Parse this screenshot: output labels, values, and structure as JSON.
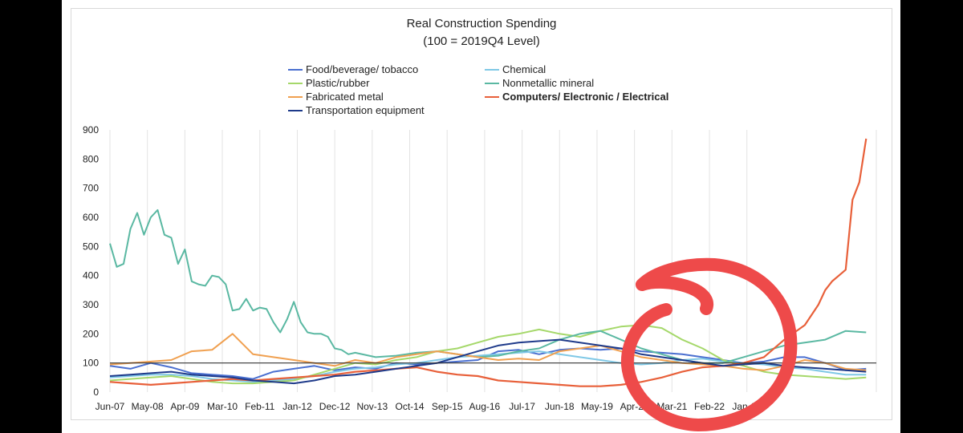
{
  "chart_data": {
    "type": "line",
    "title": "Real Construction Spending",
    "subtitle": "(100 = 2019Q4 Level)",
    "ylim": [
      0,
      900
    ],
    "yticks": [
      0,
      100,
      200,
      300,
      400,
      500,
      600,
      700,
      800,
      900
    ],
    "x_tick_labels": [
      "Jun-07",
      "May-08",
      "Apr-09",
      "Mar-10",
      "Feb-11",
      "Jan-12",
      "Dec-12",
      "Nov-13",
      "Oct-14",
      "Sep-15",
      "Aug-16",
      "Jul-17",
      "Jun-18",
      "May-19",
      "Apr-20",
      "Mar-21",
      "Feb-22",
      "Jan-23"
    ],
    "x_start": "Jun-07",
    "reference_line": 100,
    "grid": "vertical",
    "legend_position": "top",
    "annotation": "red hand-drawn circle around May-19 to Apr-20",
    "series": [
      {
        "name": "Food/beverage/ tobacco",
        "color": "#4a6fd0",
        "bold": false,
        "points": [
          [
            0,
            90
          ],
          [
            6,
            80
          ],
          [
            12,
            100
          ],
          [
            18,
            85
          ],
          [
            24,
            65
          ],
          [
            30,
            60
          ],
          [
            36,
            55
          ],
          [
            42,
            45
          ],
          [
            48,
            70
          ],
          [
            54,
            80
          ],
          [
            60,
            90
          ],
          [
            66,
            75
          ],
          [
            72,
            85
          ],
          [
            78,
            80
          ],
          [
            84,
            100
          ],
          [
            90,
            95
          ],
          [
            96,
            100
          ],
          [
            102,
            105
          ],
          [
            108,
            110
          ],
          [
            114,
            140
          ],
          [
            120,
            145
          ],
          [
            126,
            130
          ],
          [
            132,
            145
          ],
          [
            138,
            150
          ],
          [
            144,
            145
          ],
          [
            150,
            150
          ],
          [
            156,
            140
          ],
          [
            162,
            135
          ],
          [
            168,
            130
          ],
          [
            174,
            120
          ],
          [
            180,
            110
          ],
          [
            186,
            100
          ],
          [
            192,
            105
          ],
          [
            198,
            120
          ],
          [
            204,
            120
          ],
          [
            210,
            100
          ],
          [
            216,
            75
          ],
          [
            222,
            80
          ]
        ]
      },
      {
        "name": "Chemical",
        "color": "#7fc8e6",
        "bold": false,
        "points": [
          [
            0,
            50
          ],
          [
            6,
            55
          ],
          [
            12,
            60
          ],
          [
            18,
            60
          ],
          [
            24,
            55
          ],
          [
            30,
            45
          ],
          [
            36,
            40
          ],
          [
            42,
            35
          ],
          [
            48,
            40
          ],
          [
            54,
            45
          ],
          [
            60,
            55
          ],
          [
            66,
            70
          ],
          [
            72,
            80
          ],
          [
            78,
            85
          ],
          [
            84,
            95
          ],
          [
            90,
            100
          ],
          [
            96,
            110
          ],
          [
            102,
            120
          ],
          [
            108,
            125
          ],
          [
            114,
            130
          ],
          [
            120,
            135
          ],
          [
            126,
            140
          ],
          [
            132,
            130
          ],
          [
            138,
            120
          ],
          [
            144,
            110
          ],
          [
            150,
            100
          ],
          [
            156,
            95
          ],
          [
            162,
            100
          ],
          [
            168,
            110
          ],
          [
            174,
            115
          ],
          [
            180,
            105
          ],
          [
            186,
            100
          ],
          [
            192,
            95
          ],
          [
            198,
            85
          ],
          [
            204,
            80
          ],
          [
            210,
            70
          ],
          [
            216,
            60
          ],
          [
            222,
            60
          ]
        ]
      },
      {
        "name": "Plastic/rubber",
        "color": "#a5d86a",
        "bold": false,
        "points": [
          [
            0,
            40
          ],
          [
            6,
            45
          ],
          [
            12,
            50
          ],
          [
            18,
            55
          ],
          [
            24,
            45
          ],
          [
            30,
            35
          ],
          [
            36,
            30
          ],
          [
            42,
            30
          ],
          [
            48,
            35
          ],
          [
            54,
            40
          ],
          [
            60,
            60
          ],
          [
            66,
            80
          ],
          [
            72,
            100
          ],
          [
            78,
            95
          ],
          [
            84,
            110
          ],
          [
            90,
            120
          ],
          [
            96,
            140
          ],
          [
            102,
            150
          ],
          [
            108,
            170
          ],
          [
            114,
            190
          ],
          [
            120,
            200
          ],
          [
            126,
            215
          ],
          [
            132,
            200
          ],
          [
            138,
            190
          ],
          [
            144,
            210
          ],
          [
            150,
            225
          ],
          [
            156,
            230
          ],
          [
            162,
            220
          ],
          [
            168,
            180
          ],
          [
            174,
            150
          ],
          [
            180,
            110
          ],
          [
            186,
            90
          ],
          [
            192,
            70
          ],
          [
            198,
            60
          ],
          [
            204,
            55
          ],
          [
            210,
            50
          ],
          [
            216,
            45
          ],
          [
            222,
            50
          ]
        ]
      },
      {
        "name": "Nonmetallic mineral",
        "color": "#5ab8a2",
        "bold": false,
        "points": [
          [
            0,
            510
          ],
          [
            2,
            430
          ],
          [
            4,
            440
          ],
          [
            6,
            560
          ],
          [
            8,
            615
          ],
          [
            10,
            540
          ],
          [
            12,
            600
          ],
          [
            14,
            625
          ],
          [
            16,
            540
          ],
          [
            18,
            530
          ],
          [
            20,
            440
          ],
          [
            22,
            490
          ],
          [
            24,
            380
          ],
          [
            26,
            370
          ],
          [
            28,
            365
          ],
          [
            30,
            400
          ],
          [
            32,
            395
          ],
          [
            34,
            370
          ],
          [
            36,
            280
          ],
          [
            38,
            285
          ],
          [
            40,
            320
          ],
          [
            42,
            280
          ],
          [
            44,
            290
          ],
          [
            46,
            285
          ],
          [
            48,
            240
          ],
          [
            50,
            205
          ],
          [
            52,
            250
          ],
          [
            54,
            310
          ],
          [
            56,
            240
          ],
          [
            58,
            205
          ],
          [
            60,
            200
          ],
          [
            62,
            200
          ],
          [
            64,
            190
          ],
          [
            66,
            150
          ],
          [
            68,
            145
          ],
          [
            70,
            130
          ],
          [
            72,
            135
          ],
          [
            78,
            120
          ],
          [
            84,
            125
          ],
          [
            90,
            135
          ],
          [
            96,
            140
          ],
          [
            102,
            130
          ],
          [
            108,
            120
          ],
          [
            114,
            125
          ],
          [
            120,
            140
          ],
          [
            126,
            150
          ],
          [
            132,
            180
          ],
          [
            138,
            200
          ],
          [
            144,
            210
          ],
          [
            150,
            180
          ],
          [
            156,
            150
          ],
          [
            162,
            130
          ],
          [
            168,
            110
          ],
          [
            174,
            100
          ],
          [
            180,
            100
          ],
          [
            186,
            120
          ],
          [
            192,
            140
          ],
          [
            198,
            160
          ],
          [
            204,
            170
          ],
          [
            210,
            180
          ],
          [
            216,
            210
          ],
          [
            222,
            205
          ]
        ]
      },
      {
        "name": "Fabricated metal",
        "color": "#f0a050",
        "bold": false,
        "points": [
          [
            0,
            95
          ],
          [
            6,
            100
          ],
          [
            12,
            105
          ],
          [
            18,
            110
          ],
          [
            24,
            140
          ],
          [
            30,
            145
          ],
          [
            36,
            200
          ],
          [
            42,
            130
          ],
          [
            48,
            120
          ],
          [
            54,
            110
          ],
          [
            60,
            100
          ],
          [
            66,
            90
          ],
          [
            72,
            110
          ],
          [
            78,
            100
          ],
          [
            84,
            120
          ],
          [
            90,
            130
          ],
          [
            96,
            140
          ],
          [
            102,
            130
          ],
          [
            108,
            120
          ],
          [
            114,
            110
          ],
          [
            120,
            115
          ],
          [
            126,
            110
          ],
          [
            132,
            140
          ],
          [
            138,
            150
          ],
          [
            144,
            160
          ],
          [
            150,
            140
          ],
          [
            156,
            120
          ],
          [
            162,
            110
          ],
          [
            168,
            100
          ],
          [
            174,
            95
          ],
          [
            180,
            90
          ],
          [
            186,
            80
          ],
          [
            192,
            75
          ],
          [
            198,
            90
          ],
          [
            204,
            110
          ],
          [
            210,
            100
          ],
          [
            216,
            80
          ],
          [
            222,
            75
          ]
        ]
      },
      {
        "name": "Computers/ Electronic / Electrical",
        "color": "#e8603a",
        "bold": true,
        "points": [
          [
            0,
            35
          ],
          [
            6,
            30
          ],
          [
            12,
            25
          ],
          [
            18,
            30
          ],
          [
            24,
            35
          ],
          [
            30,
            40
          ],
          [
            36,
            45
          ],
          [
            42,
            40
          ],
          [
            48,
            45
          ],
          [
            54,
            50
          ],
          [
            60,
            55
          ],
          [
            66,
            60
          ],
          [
            72,
            70
          ],
          [
            78,
            75
          ],
          [
            84,
            80
          ],
          [
            90,
            85
          ],
          [
            96,
            70
          ],
          [
            102,
            60
          ],
          [
            108,
            55
          ],
          [
            114,
            40
          ],
          [
            120,
            35
          ],
          [
            126,
            30
          ],
          [
            132,
            25
          ],
          [
            138,
            20
          ],
          [
            144,
            20
          ],
          [
            150,
            25
          ],
          [
            156,
            35
          ],
          [
            162,
            50
          ],
          [
            168,
            70
          ],
          [
            174,
            85
          ],
          [
            180,
            90
          ],
          [
            186,
            100
          ],
          [
            192,
            120
          ],
          [
            198,
            180
          ],
          [
            204,
            230
          ],
          [
            208,
            300
          ],
          [
            210,
            350
          ],
          [
            212,
            380
          ],
          [
            214,
            400
          ],
          [
            216,
            420
          ],
          [
            218,
            660
          ],
          [
            220,
            720
          ],
          [
            222,
            870
          ]
        ]
      },
      {
        "name": "Transportation equipment",
        "color": "#1e3a8a",
        "bold": false,
        "points": [
          [
            0,
            55
          ],
          [
            6,
            60
          ],
          [
            12,
            65
          ],
          [
            18,
            70
          ],
          [
            24,
            60
          ],
          [
            30,
            55
          ],
          [
            36,
            50
          ],
          [
            42,
            40
          ],
          [
            48,
            35
          ],
          [
            54,
            30
          ],
          [
            60,
            40
          ],
          [
            66,
            55
          ],
          [
            72,
            60
          ],
          [
            78,
            70
          ],
          [
            84,
            80
          ],
          [
            90,
            90
          ],
          [
            96,
            100
          ],
          [
            102,
            120
          ],
          [
            108,
            140
          ],
          [
            114,
            160
          ],
          [
            120,
            170
          ],
          [
            126,
            175
          ],
          [
            132,
            180
          ],
          [
            138,
            170
          ],
          [
            144,
            160
          ],
          [
            150,
            150
          ],
          [
            156,
            130
          ],
          [
            162,
            120
          ],
          [
            168,
            110
          ],
          [
            174,
            100
          ],
          [
            180,
            90
          ],
          [
            186,
            95
          ],
          [
            192,
            100
          ],
          [
            198,
            90
          ],
          [
            204,
            85
          ],
          [
            210,
            80
          ],
          [
            216,
            75
          ],
          [
            222,
            70
          ]
        ]
      }
    ]
  }
}
